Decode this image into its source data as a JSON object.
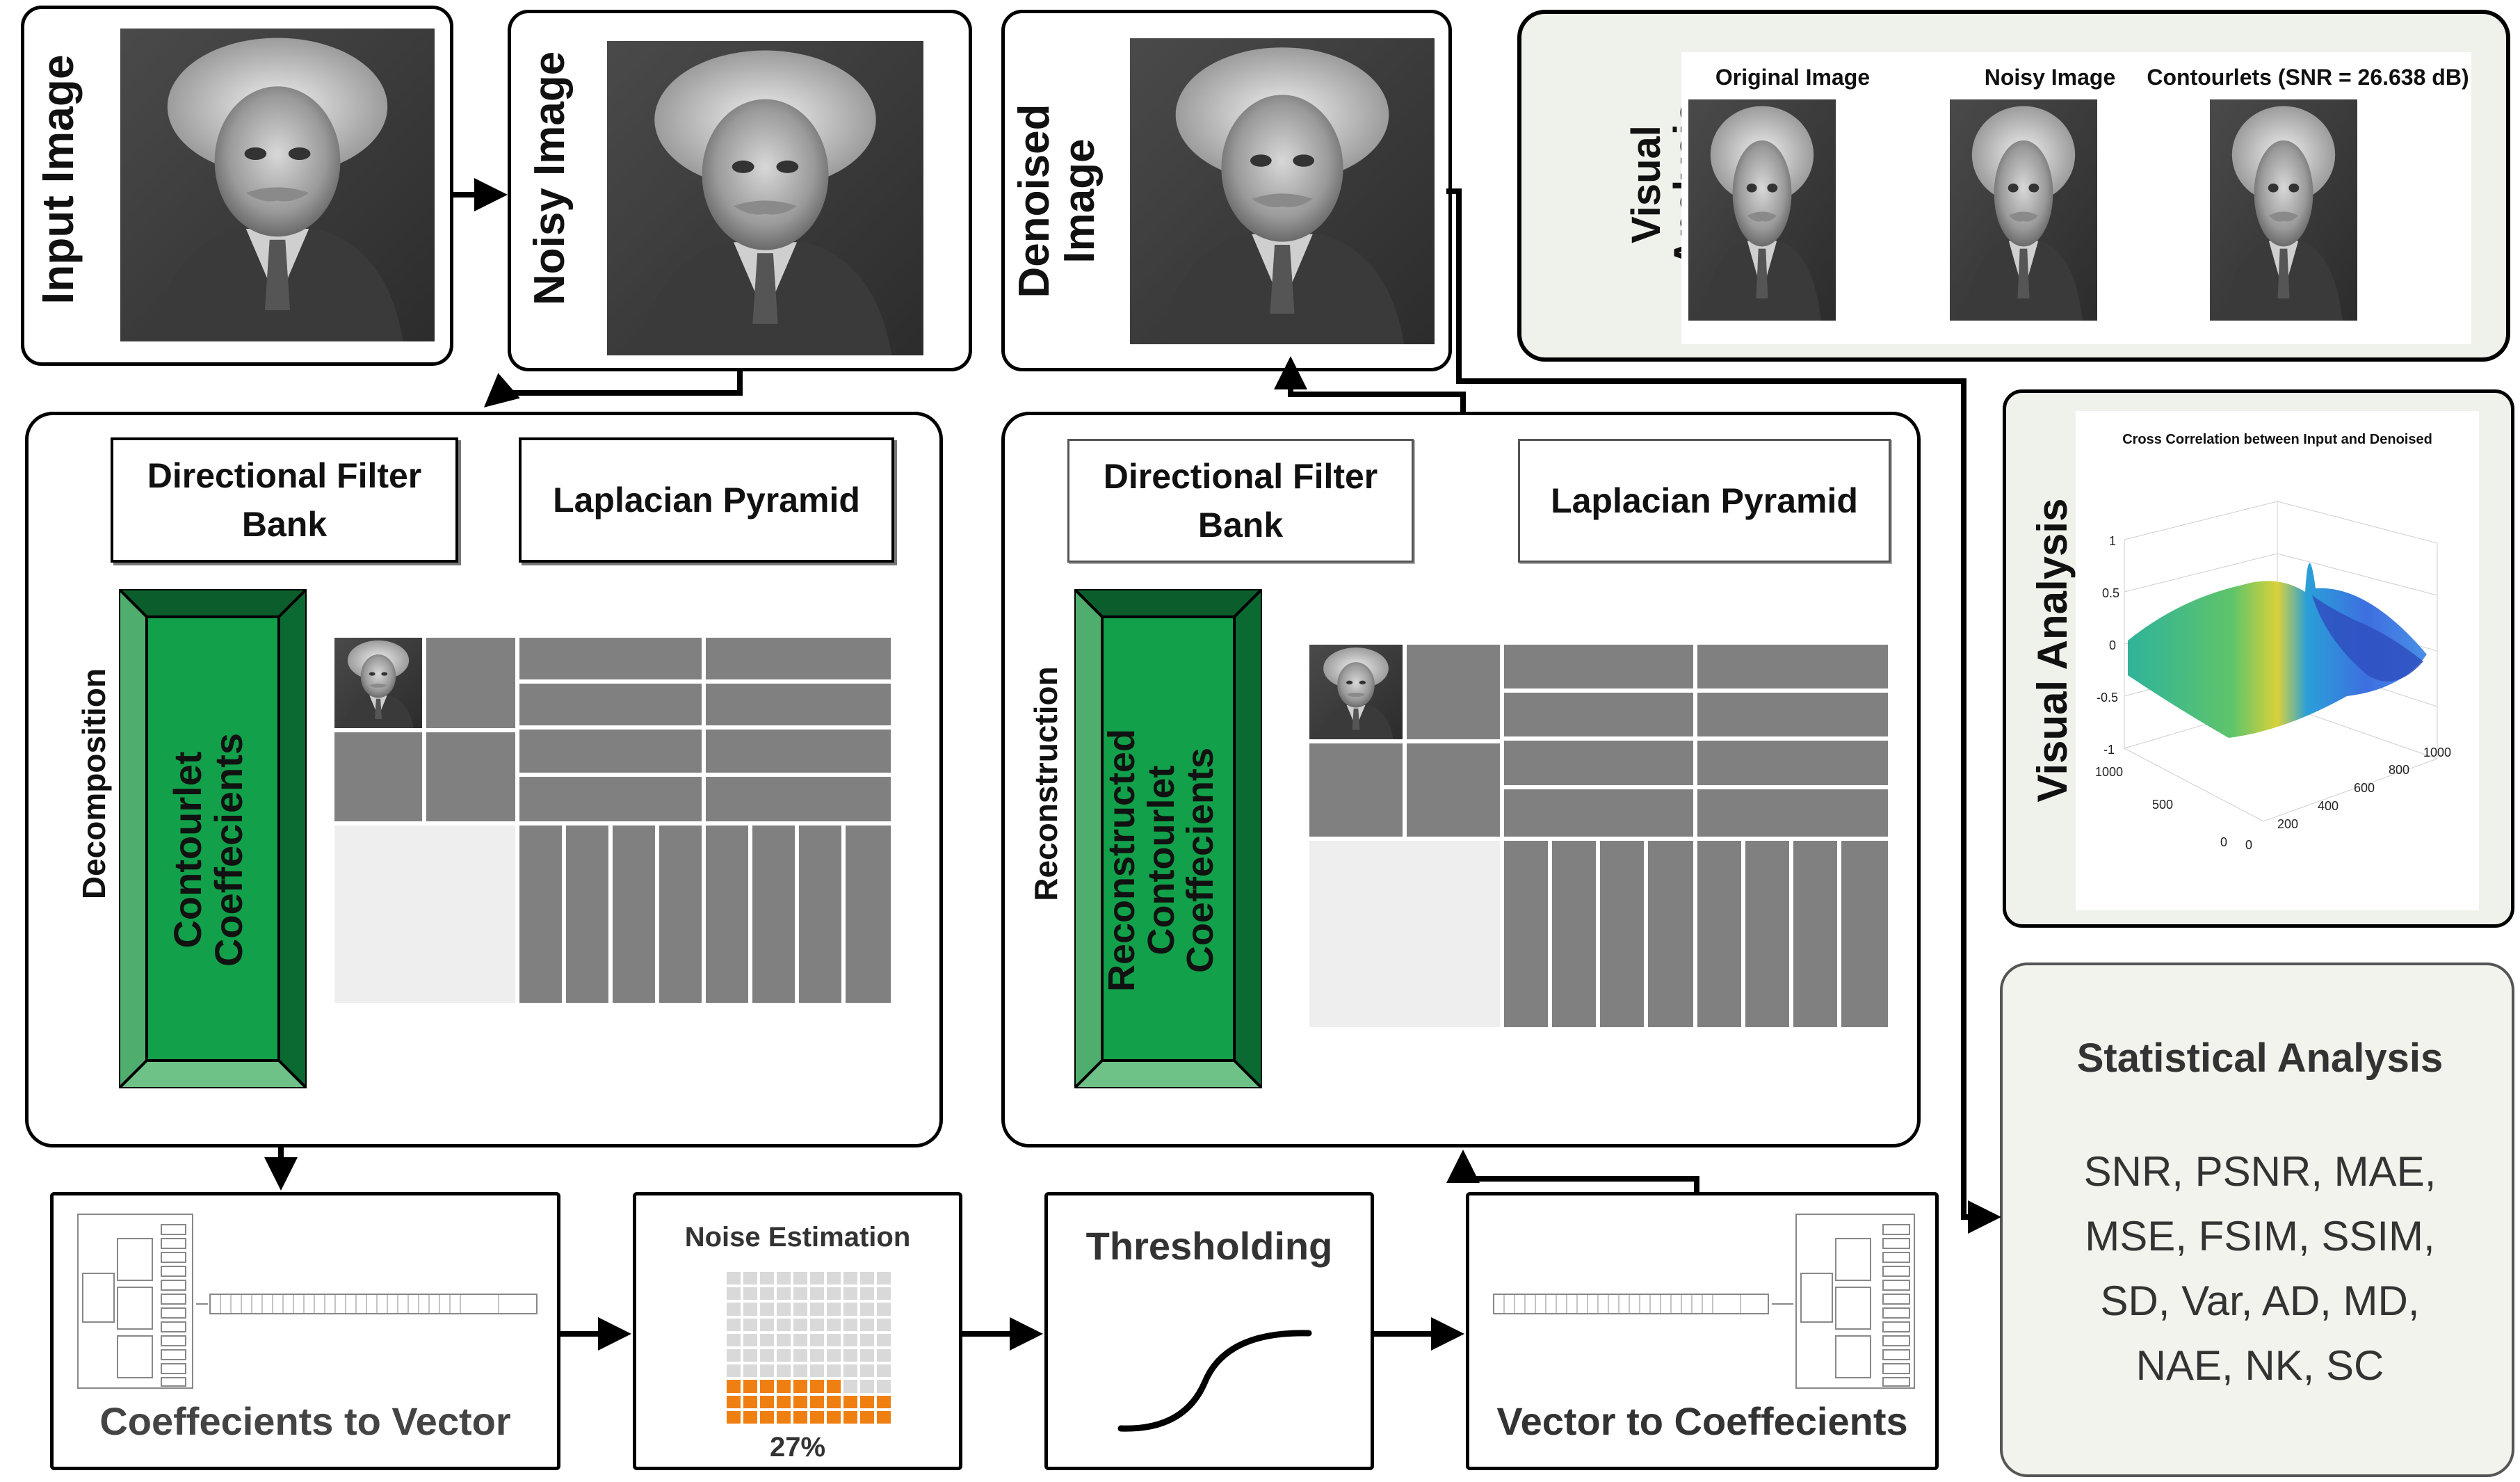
{
  "input_panel": {
    "label": "Input Image"
  },
  "noisy_panel": {
    "label": "Noisy Image"
  },
  "denoised_panel": {
    "label": "Denoised Image",
    "label_line1": "Denoised",
    "label_line2": "Image"
  },
  "visual_top": {
    "label_line1": "Visual",
    "label_line2": "Analysis",
    "captions": [
      "Original Image",
      "Noisy Image",
      "Contourlets (SNR = 26.638 dB)"
    ]
  },
  "visual_right": {
    "label": "Visual Analysis",
    "plot_title": "Cross Correlation between Input and Denoised",
    "z_ticks": [
      "1",
      "0.5",
      "0",
      "-0.5",
      "-1"
    ],
    "x_ticks": [
      "1000",
      "500",
      "0"
    ],
    "y_ticks": [
      "0",
      "200",
      "400",
      "600",
      "800",
      "1000"
    ]
  },
  "decomposition": {
    "side_label": "Decomposition",
    "dfb_line1": "Directional Filter",
    "dfb_line2": "Bank",
    "lp": "Laplacian Pyramid",
    "coef_line1": "Contourlet",
    "coef_line2": "Coeffecients"
  },
  "reconstruction": {
    "side_label": "Reconstruction",
    "dfb_line1": "Directional Filter",
    "dfb_line2": "Bank",
    "lp": "Laplacian Pyramid",
    "coef_line1": "Reconstructed",
    "coef_line2": "Contourlet",
    "coef_line3": "Coeffecients"
  },
  "statistical": {
    "title": "Statistical Analysis",
    "line1": "SNR, PSNR, MAE,",
    "line2": "MSE, FSIM, SSIM,",
    "line3": "SD, Var, AD, MD,",
    "line4": "NAE, NK, SC"
  },
  "coef_to_vector": {
    "label": "Coeffecients to Vector"
  },
  "noise_estimation": {
    "label": "Noise Estimation",
    "percent_text": "27%",
    "fraction": 0.27
  },
  "thresholding": {
    "label": "Thresholding"
  },
  "vector_to_coef": {
    "label": "Vector to Coeffecients"
  },
  "colors": {
    "green_dark": "#0f7a3a",
    "green_light": "#6cc08a",
    "orange": "#f07f12",
    "panel_tint": "#f1f3ec"
  }
}
